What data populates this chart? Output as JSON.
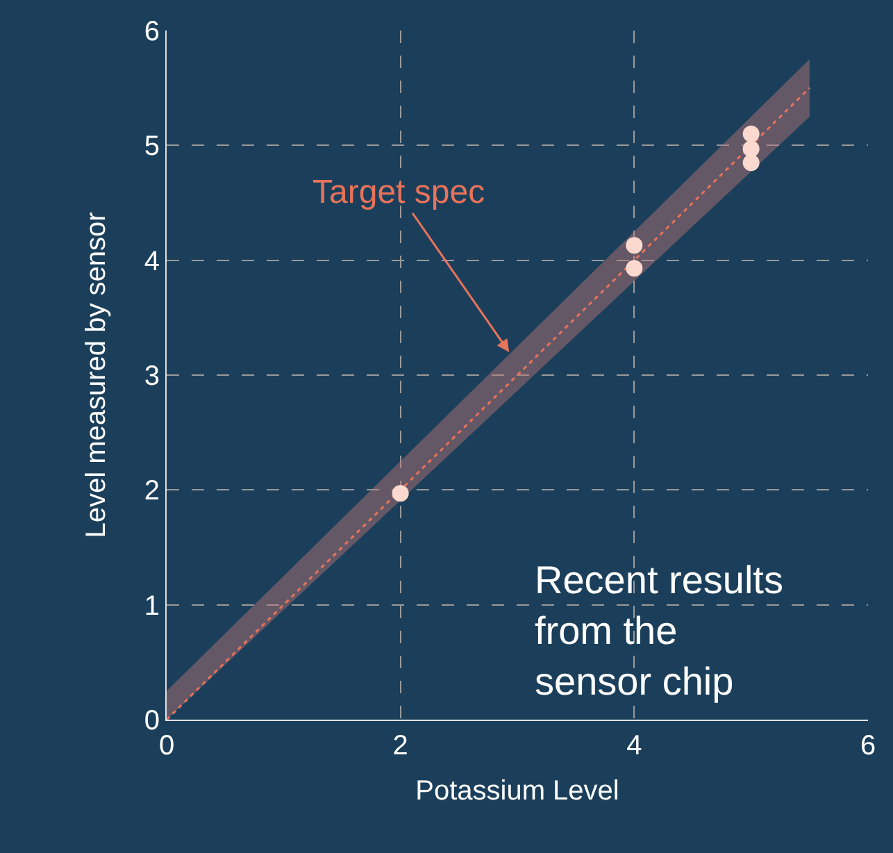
{
  "chart_data": {
    "type": "scatter",
    "xlabel": "Potassium Level",
    "ylabel": "Level measured by sensor",
    "xlim": [
      0,
      6
    ],
    "ylim": [
      0,
      6
    ],
    "xticks": [
      0,
      2,
      4,
      6
    ],
    "yticks": [
      0,
      1,
      2,
      3,
      4,
      5,
      6
    ],
    "grid": true,
    "legend": false,
    "series": [
      {
        "type": "line",
        "color": "#e8735a",
        "line_style": "dotted",
        "x": [
          0,
          5.5
        ],
        "values": [
          0,
          5.5
        ],
        "lower": [
          0,
          5.25
        ],
        "upper": [
          0.25,
          5.75
        ]
      },
      {
        "marker": "circle",
        "color": "#fcd9cf",
        "x": [
          2,
          4,
          4,
          5,
          5,
          5
        ],
        "values": [
          1.97,
          4.13,
          3.93,
          5.1,
          4.97,
          4.85
        ]
      }
    ],
    "annotations": [
      {
        "text": "Target spec",
        "x": 2.93,
        "y": 3.2
      },
      "Recent results from the sensor chip"
    ]
  }
}
